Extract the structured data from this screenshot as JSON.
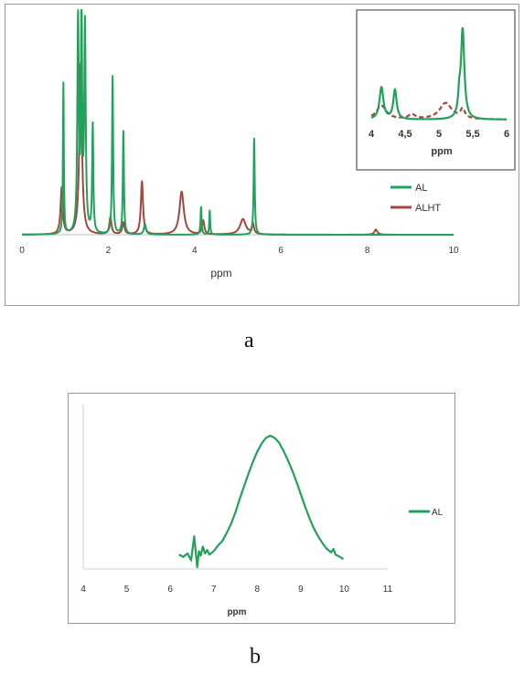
{
  "panels": {
    "a": {
      "letter": "a"
    },
    "b": {
      "letter": "b"
    }
  },
  "chart_data": [
    {
      "id": "a-main",
      "type": "line",
      "title": "",
      "xlabel": "ppm",
      "ylabel": "",
      "xlim": [
        0,
        10
      ],
      "xticks": [
        "0",
        "2",
        "4",
        "6",
        "8",
        "10"
      ],
      "grid": false,
      "legend_position": "right",
      "series": [
        {
          "name": "AL",
          "color": "#21a15a",
          "baseline": 0,
          "peaks": [
            [
              0.96,
              88,
              0.012
            ],
            [
              1.3,
              125,
              0.02
            ],
            [
              1.38,
              131,
              0.016
            ],
            [
              1.46,
              120,
              0.02
            ],
            [
              1.64,
              63,
              0.016
            ],
            [
              2.1,
              92,
              0.015
            ],
            [
              2.35,
              60,
              0.015
            ],
            [
              2.85,
              6,
              0.03
            ],
            [
              4.15,
              16,
              0.015
            ],
            [
              4.35,
              14,
              0.012
            ],
            [
              5.38,
              56,
              0.015
            ]
          ]
        },
        {
          "name": "ALHT",
          "color": "#a5463e",
          "baseline": 0,
          "peaks": [
            [
              0.92,
              27,
              0.03
            ],
            [
              1.36,
              100,
              0.035
            ],
            [
              2.05,
              10,
              0.03
            ],
            [
              2.35,
              7,
              0.03
            ],
            [
              2.78,
              31,
              0.03
            ],
            [
              3.7,
              25,
              0.06
            ],
            [
              4.2,
              8,
              0.03
            ],
            [
              5.12,
              9,
              0.08
            ],
            [
              5.35,
              6,
              0.03
            ],
            [
              8.2,
              3,
              0.04
            ]
          ]
        }
      ]
    },
    {
      "id": "a-inset",
      "type": "line",
      "xlabel": "ppm",
      "xlim": [
        4,
        6
      ],
      "xticks": [
        "4",
        "4,5",
        "5",
        "5,5",
        "6"
      ],
      "series": [
        {
          "name": "AL",
          "color": "#21a15a",
          "peaks": [
            [
              4.15,
              35,
              0.035
            ],
            [
              4.35,
              32,
              0.03
            ],
            [
              5.35,
              98,
              0.03
            ],
            [
              5.3,
              20,
              0.02
            ]
          ]
        },
        {
          "name": "ALHT",
          "color": "#a5463e",
          "dashed": true,
          "peaks": [
            [
              4.15,
              15,
              0.09
            ],
            [
              4.6,
              5,
              0.06
            ],
            [
              5.1,
              18,
              0.11
            ],
            [
              5.35,
              10,
              0.04
            ]
          ]
        }
      ]
    },
    {
      "id": "b",
      "type": "line",
      "title": "",
      "xlabel": "ppm",
      "ylabel": "",
      "xlim": [
        4,
        11
      ],
      "xticks": [
        "4",
        "5",
        "6",
        "7",
        "8",
        "9",
        "10",
        "11"
      ],
      "grid": false,
      "legend_position": "right",
      "series": [
        {
          "name": "AL",
          "color": "#21a15a",
          "x": [
            6.2,
            6.3,
            6.4,
            6.48,
            6.55,
            6.58,
            6.62,
            6.66,
            6.7,
            6.75,
            6.8,
            6.85,
            6.9,
            7.0,
            7.1,
            7.2,
            7.3,
            7.4,
            7.5,
            7.6,
            7.7,
            7.8,
            7.9,
            8.0,
            8.1,
            8.2,
            8.3,
            8.4,
            8.5,
            8.6,
            8.7,
            8.8,
            8.9,
            9.0,
            9.1,
            9.2,
            9.3,
            9.4,
            9.5,
            9.6,
            9.7,
            9.75,
            9.8,
            9.9,
            9.98
          ],
          "y": [
            3,
            1,
            4,
            -2,
            19,
            8,
            -8,
            6,
            2,
            10,
            4,
            7,
            3,
            6,
            11,
            15,
            22,
            30,
            40,
            52,
            63,
            74,
            84,
            93,
            100,
            105,
            107,
            105,
            101,
            94,
            86,
            77,
            67,
            56,
            45,
            35,
            26,
            19,
            13,
            8,
            5,
            8,
            3,
            1,
            -1
          ]
        }
      ]
    }
  ]
}
